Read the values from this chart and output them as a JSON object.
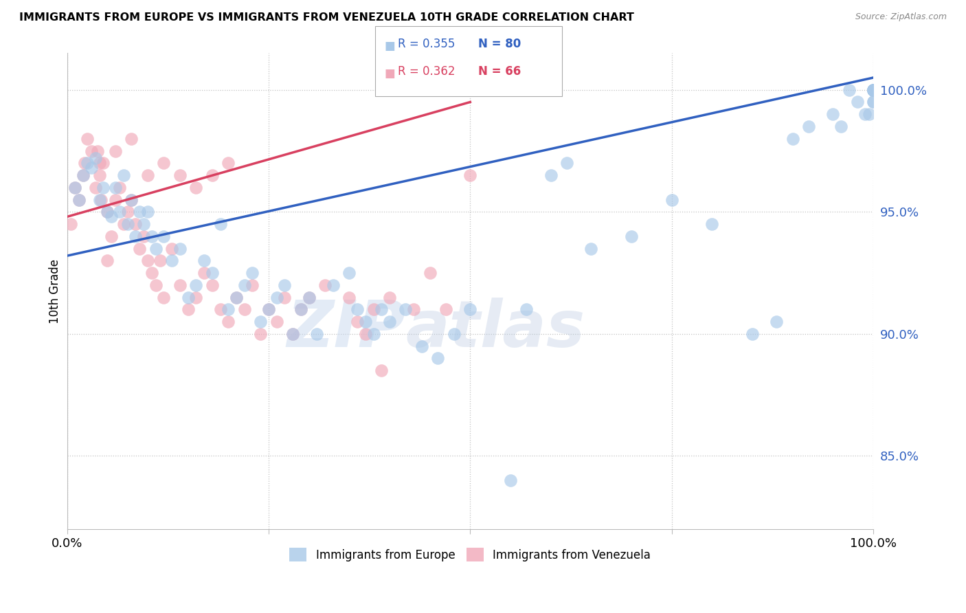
{
  "title": "IMMIGRANTS FROM EUROPE VS IMMIGRANTS FROM VENEZUELA 10TH GRADE CORRELATION CHART",
  "source": "Source: ZipAtlas.com",
  "ylabel": "10th Grade",
  "xmin": 0.0,
  "xmax": 100.0,
  "ymin": 82.0,
  "ymax": 101.5,
  "yticks": [
    85.0,
    90.0,
    95.0,
    100.0
  ],
  "ytick_labels": [
    "85.0%",
    "90.0%",
    "95.0%",
    "100.0%"
  ],
  "watermark_zip": "ZIP",
  "watermark_atlas": "atlas",
  "legend_blue_r": "R = 0.355",
  "legend_blue_n": "N = 80",
  "legend_pink_r": "R = 0.362",
  "legend_pink_n": "N = 66",
  "legend_label_blue": "Immigrants from Europe",
  "legend_label_pink": "Immigrants from Venezuela",
  "blue_color": "#a8c8e8",
  "pink_color": "#f0a8b8",
  "blue_line_color": "#3060c0",
  "pink_line_color": "#d84060",
  "blue_x": [
    1.0,
    1.5,
    2.0,
    2.5,
    3.0,
    3.5,
    4.0,
    4.5,
    5.0,
    5.5,
    6.0,
    6.5,
    7.0,
    7.5,
    8.0,
    8.5,
    9.0,
    9.5,
    10.0,
    10.5,
    11.0,
    12.0,
    13.0,
    14.0,
    15.0,
    16.0,
    17.0,
    18.0,
    19.0,
    20.0,
    21.0,
    22.0,
    23.0,
    24.0,
    25.0,
    26.0,
    27.0,
    28.0,
    29.0,
    30.0,
    31.0,
    33.0,
    35.0,
    36.0,
    37.0,
    38.0,
    39.0,
    40.0,
    42.0,
    44.0,
    46.0,
    48.0,
    50.0,
    55.0,
    57.0,
    60.0,
    62.0,
    65.0,
    70.0,
    75.0,
    80.0,
    85.0,
    88.0,
    90.0,
    92.0,
    95.0,
    96.0,
    97.0,
    98.0,
    99.0,
    99.5,
    100.0,
    100.0,
    100.0,
    100.0,
    100.0,
    100.0,
    100.0,
    100.0,
    100.0
  ],
  "blue_y": [
    96.0,
    95.5,
    96.5,
    97.0,
    96.8,
    97.2,
    95.5,
    96.0,
    95.0,
    94.8,
    96.0,
    95.0,
    96.5,
    94.5,
    95.5,
    94.0,
    95.0,
    94.5,
    95.0,
    94.0,
    93.5,
    94.0,
    93.0,
    93.5,
    91.5,
    92.0,
    93.0,
    92.5,
    94.5,
    91.0,
    91.5,
    92.0,
    92.5,
    90.5,
    91.0,
    91.5,
    92.0,
    90.0,
    91.0,
    91.5,
    90.0,
    92.0,
    92.5,
    91.0,
    90.5,
    90.0,
    91.0,
    90.5,
    91.0,
    89.5,
    89.0,
    90.0,
    91.0,
    84.0,
    91.0,
    96.5,
    97.0,
    93.5,
    94.0,
    95.5,
    94.5,
    90.0,
    90.5,
    98.0,
    98.5,
    99.0,
    98.5,
    100.0,
    99.5,
    99.0,
    99.0,
    100.0,
    99.5,
    100.0,
    100.0,
    99.5,
    100.0,
    100.0,
    100.0,
    100.0
  ],
  "pink_x": [
    0.5,
    1.0,
    1.5,
    2.0,
    2.2,
    2.5,
    3.0,
    3.5,
    3.8,
    4.0,
    4.2,
    4.5,
    5.0,
    5.5,
    6.0,
    6.5,
    7.0,
    7.5,
    8.0,
    8.5,
    9.0,
    9.5,
    10.0,
    10.5,
    11.0,
    11.5,
    12.0,
    13.0,
    14.0,
    15.0,
    16.0,
    17.0,
    18.0,
    19.0,
    20.0,
    21.0,
    22.0,
    23.0,
    24.0,
    25.0,
    26.0,
    27.0,
    28.0,
    29.0,
    30.0,
    32.0,
    35.0,
    36.0,
    37.0,
    38.0,
    39.0,
    40.0,
    43.0,
    45.0,
    47.0,
    50.0,
    4.0,
    6.0,
    8.0,
    10.0,
    12.0,
    14.0,
    16.0,
    18.0,
    20.0,
    5.0
  ],
  "pink_y": [
    94.5,
    96.0,
    95.5,
    96.5,
    97.0,
    98.0,
    97.5,
    96.0,
    97.5,
    96.5,
    95.5,
    97.0,
    95.0,
    94.0,
    95.5,
    96.0,
    94.5,
    95.0,
    95.5,
    94.5,
    93.5,
    94.0,
    93.0,
    92.5,
    92.0,
    93.0,
    91.5,
    93.5,
    92.0,
    91.0,
    91.5,
    92.5,
    92.0,
    91.0,
    90.5,
    91.5,
    91.0,
    92.0,
    90.0,
    91.0,
    90.5,
    91.5,
    90.0,
    91.0,
    91.5,
    92.0,
    91.5,
    90.5,
    90.0,
    91.0,
    88.5,
    91.5,
    91.0,
    92.5,
    91.0,
    96.5,
    97.0,
    97.5,
    98.0,
    96.5,
    97.0,
    96.5,
    96.0,
    96.5,
    97.0,
    93.0
  ],
  "blue_line_x0": 0,
  "blue_line_x1": 100,
  "blue_line_y0": 93.2,
  "blue_line_y1": 100.5,
  "pink_line_x0": 0,
  "pink_line_x1": 50,
  "pink_line_y0": 94.8,
  "pink_line_y1": 99.5
}
